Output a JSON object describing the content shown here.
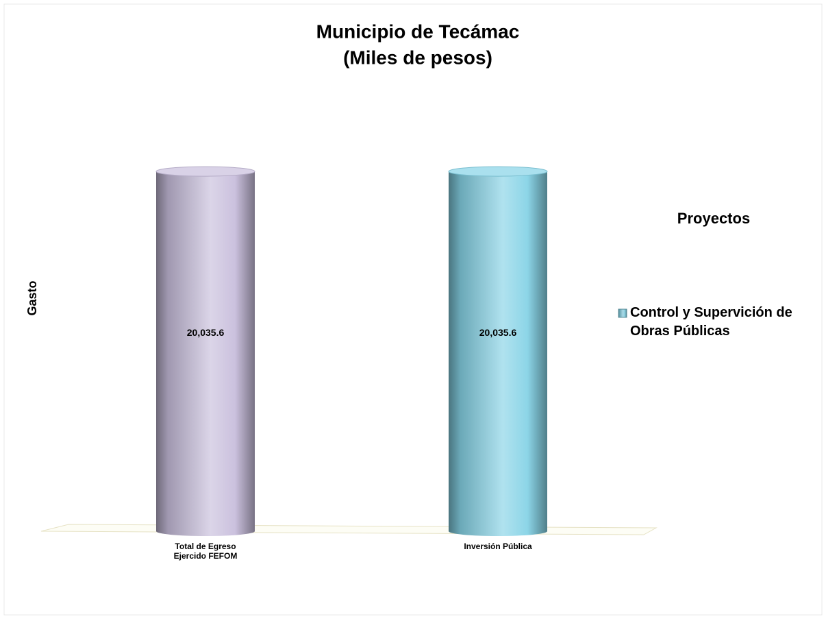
{
  "chart_data": {
    "type": "cylinder_bar",
    "title": "Municipio de Tecámac",
    "subtitle": "(Miles de pesos)",
    "ylabel": "Gasto",
    "legend_title": "Proyectos",
    "legend": "right",
    "categories": [
      "Total de Egreso\nEjercido FEFOM",
      "Inversión Pública"
    ],
    "ylim": [
      0,
      25000
    ],
    "series": [
      {
        "name": "Control y Supervición de Obras Públicas",
        "color": "#7fc8da",
        "colors": [
          "#c8bedc",
          "#86d3e6"
        ],
        "values": [
          20035.6,
          20035.6
        ],
        "value_labels": [
          "20,035.6",
          "20,035.6"
        ]
      }
    ]
  }
}
